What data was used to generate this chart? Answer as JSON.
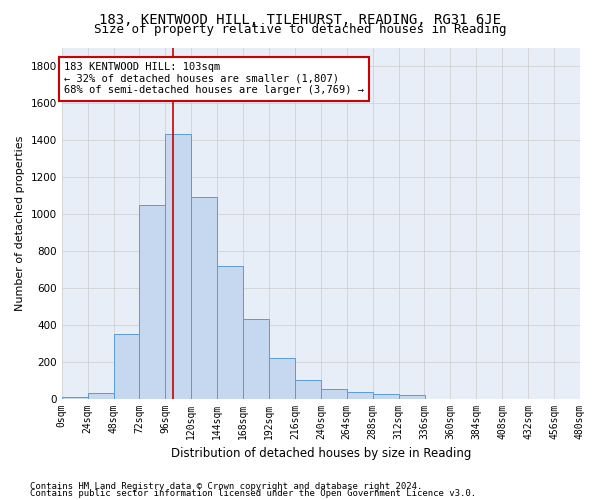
{
  "title1": "183, KENTWOOD HILL, TILEHURST, READING, RG31 6JE",
  "title2": "Size of property relative to detached houses in Reading",
  "xlabel": "Distribution of detached houses by size in Reading",
  "ylabel": "Number of detached properties",
  "footnote1": "Contains HM Land Registry data © Crown copyright and database right 2024.",
  "footnote2": "Contains public sector information licensed under the Open Government Licence v3.0.",
  "bin_edges": [
    0,
    24,
    48,
    72,
    96,
    120,
    144,
    168,
    192,
    216,
    240,
    264,
    288,
    312,
    336,
    360,
    384,
    408,
    432,
    456,
    480
  ],
  "bin_counts": [
    10,
    30,
    350,
    1050,
    1430,
    1090,
    720,
    430,
    220,
    100,
    50,
    35,
    25,
    18,
    0,
    0,
    0,
    0,
    0,
    0
  ],
  "bar_color": "#c5d8f0",
  "bar_edgecolor": "#5b9bd5",
  "vline_x": 103,
  "vline_color": "#cc0000",
  "annotation_line1": "183 KENTWOOD HILL: 103sqm",
  "annotation_line2": "← 32% of detached houses are smaller (1,807)",
  "annotation_line3": "68% of semi-detached houses are larger (3,769) →",
  "annotation_box_color": "#cc0000",
  "annotation_bg": "#ffffff",
  "ylim": [
    0,
    1900
  ],
  "xlim": [
    0,
    480
  ],
  "grid_color": "#cccccc",
  "tick_labels": [
    "0sqm",
    "24sqm",
    "48sqm",
    "72sqm",
    "96sqm",
    "120sqm",
    "144sqm",
    "168sqm",
    "192sqm",
    "216sqm",
    "240sqm",
    "264sqm",
    "288sqm",
    "312sqm",
    "336sqm",
    "360sqm",
    "384sqm",
    "408sqm",
    "432sqm",
    "456sqm",
    "480sqm"
  ],
  "title1_fontsize": 10,
  "title2_fontsize": 9,
  "xlabel_fontsize": 8.5,
  "ylabel_fontsize": 8,
  "tick_fontsize": 7,
  "annotation_fontsize": 7.5,
  "footnote_fontsize": 6.5,
  "bg_color": "#e8eef8"
}
